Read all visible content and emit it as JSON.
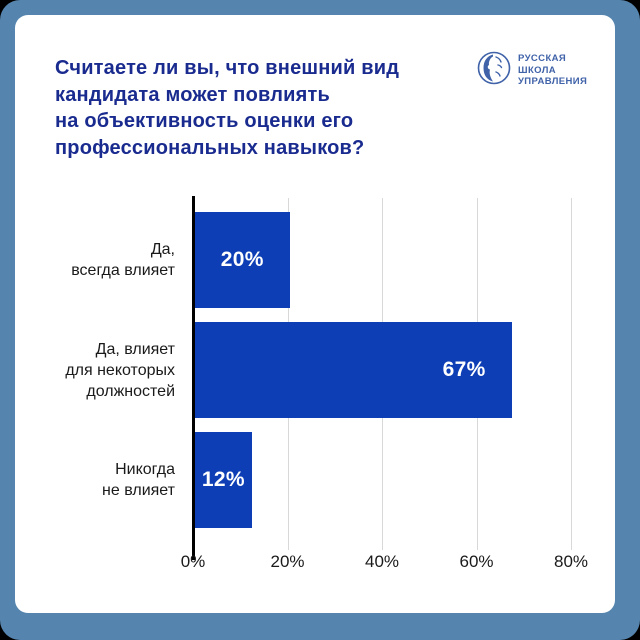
{
  "frame": {
    "outer_color": "#5585ae",
    "corner_backdrop": "#000000",
    "card_color": "#ffffff"
  },
  "header": {
    "logo": {
      "text": "РУССКАЯ\nШКОЛА\nУПРАВЛЕНИЯ",
      "color": "#3f62a8",
      "icon": "rsu-globe-face-icon"
    }
  },
  "chart_data": {
    "type": "bar",
    "orientation": "horizontal",
    "title": "Считаете ли вы, что внешний вид\nкандидата может повлиять\nна объективность оценки его\nпрофессиональных навыков?",
    "title_color": "#1a2b8f",
    "categories": [
      "Да,\nвсегда влияет",
      "Да, влияет\nдля некоторых\nдолжностей",
      "Никогда\nне влияет"
    ],
    "values": [
      20,
      67,
      12
    ],
    "value_labels": [
      "20%",
      "67%",
      "12%"
    ],
    "x_ticks": [
      "0%",
      "20%",
      "40%",
      "60%",
      "80%"
    ],
    "xlim": [
      0,
      80
    ],
    "grid": true,
    "bar_color": "#0d3eb5",
    "value_label_color": "#ffffff",
    "gridline_color": "#d8d8d8",
    "axis_color": "#000000",
    "legend": "none"
  }
}
